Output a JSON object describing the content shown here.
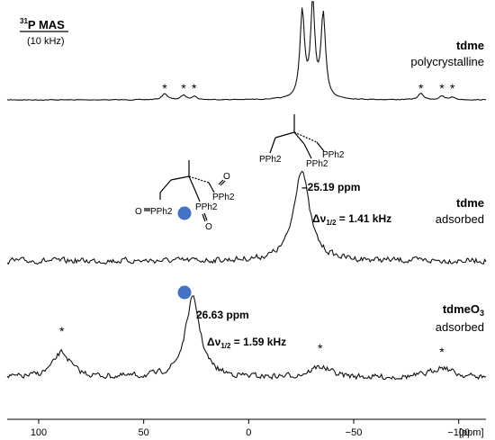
{
  "chart_data": {
    "type": "line",
    "x_axis": {
      "unit_label": "[ppm]",
      "range": [
        115,
        -113
      ],
      "reversed": true,
      "ticks": [
        100,
        50,
        0,
        -50,
        -100
      ],
      "tick_labels": [
        "100",
        "50",
        "0",
        "−50",
        "−100"
      ]
    },
    "header": {
      "nucleus_sup": "31",
      "nucleus_title": "P MAS",
      "rate": "(10 kHz)"
    },
    "spinning_sideband_marker": "*",
    "series": [
      {
        "name": "tdme",
        "subtitle": "polycrystalline",
        "peaks_ppm": [
          -25.5,
          -30.5,
          -35.5
        ],
        "sideband_ppm": [
          40,
          31,
          26,
          -82,
          -92,
          -97
        ]
      },
      {
        "name": "tdme",
        "subtitle": "adsorbed",
        "peak_ppm": -25.19,
        "peak_label": "–25.19 ppm",
        "linewidth_label": "Δν",
        "linewidth_sub": "1/2",
        "linewidth_value": " = 1.41 kHz",
        "molecule": {
          "substituent_labels": [
            "PPh2",
            "PPh2",
            "PPh2"
          ]
        }
      },
      {
        "name": "tdmeO",
        "name_sub": "3",
        "subtitle": "adsorbed",
        "peak_ppm": 26.63,
        "peak_label": "26.63 ppm",
        "linewidth_label": "Δν",
        "linewidth_sub": "1/2",
        "linewidth_value": " = 1.59 kHz",
        "sideband_ppm": [
          89,
          -34,
          -92
        ],
        "molecule": {
          "substituent_labels": [
            "PPh2",
            "PPh2",
            "PPh2"
          ],
          "oxide_label": "O"
        }
      }
    ],
    "marker_color": "#4472c4"
  }
}
